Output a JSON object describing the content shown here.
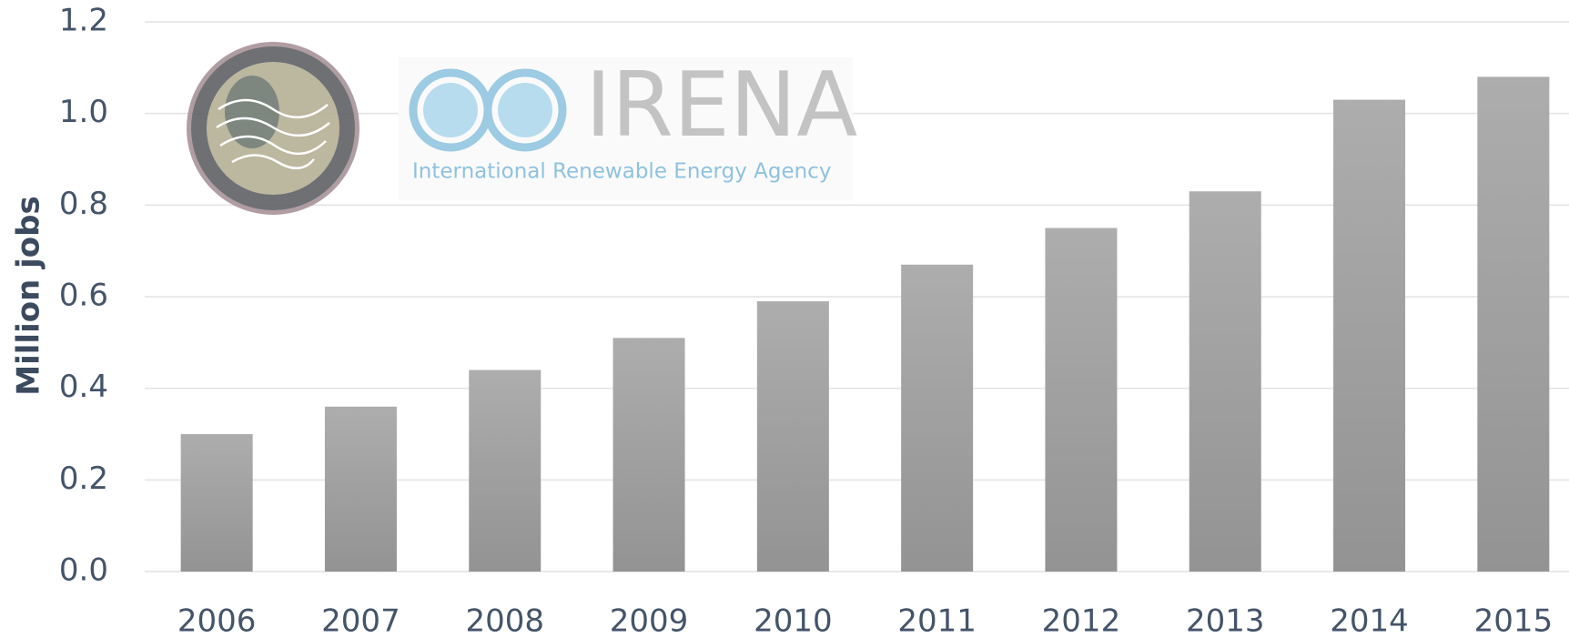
{
  "chart_data": {
    "type": "bar",
    "y_label": "Million jobs",
    "logo": {
      "name": "IRENA",
      "subtitle": "International Renewable Energy Agency"
    },
    "categories": [
      "2006",
      "2007",
      "2008",
      "2009",
      "2010",
      "2011",
      "2012",
      "2013",
      "2014",
      "2015"
    ],
    "values": [
      0.3,
      0.36,
      0.44,
      0.51,
      0.59,
      0.67,
      0.75,
      0.83,
      1.03,
      1.08
    ],
    "color": "#a3a3a3",
    "ylim": [
      0,
      1.2
    ],
    "yticks": [
      {
        "value": 0,
        "label": "0.0"
      },
      0.2,
      0.4,
      0.6,
      0.8,
      {
        "value": 1,
        "label": "1.0"
      },
      1.2
    ],
    "grid": true
  }
}
